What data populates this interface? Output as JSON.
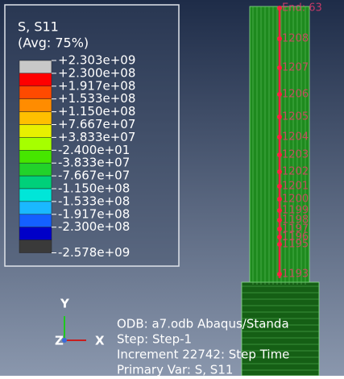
{
  "legend": {
    "title": "S, S11",
    "subtitle": "(Avg: 75%)",
    "labels": [
      "+2.303e+09",
      "+2.300e+08",
      "+1.917e+08",
      "+1.533e+08",
      "+1.150e+08",
      "+7.667e+07",
      "+3.833e+07",
      "-2.400e+01",
      "-3.833e+07",
      "-7.667e+07",
      "-1.150e+08",
      "-1.533e+08",
      "-1.917e+08",
      "-2.300e+08",
      "-2.578e+09"
    ],
    "colors": [
      "#c8c8c8",
      "#ff0000",
      "#ff4a00",
      "#ff8c00",
      "#ffbf00",
      "#e8f000",
      "#a6ff00",
      "#46e600",
      "#22d22a",
      "#00d07a",
      "#00e6d8",
      "#1ab8ff",
      "#1460ff",
      "#0000c8",
      "#3a3a3a"
    ]
  },
  "model": {
    "node_labels": [
      "End: 63",
      "1208",
      "1207",
      "1206",
      "1205",
      "1204",
      "1203",
      "1202",
      "1201",
      "1200",
      "1199",
      "1198",
      "1197",
      "1196",
      "1195",
      "1193"
    ]
  },
  "triad": {
    "y": "Y",
    "z": "Z",
    "x": "X"
  },
  "info": {
    "lines": [
      "ODB: a7.odb    Abaqus/Standa",
      "Step: Step-1",
      "Increment    22742: Step Time",
      "Primary Var: S, S11"
    ]
  }
}
